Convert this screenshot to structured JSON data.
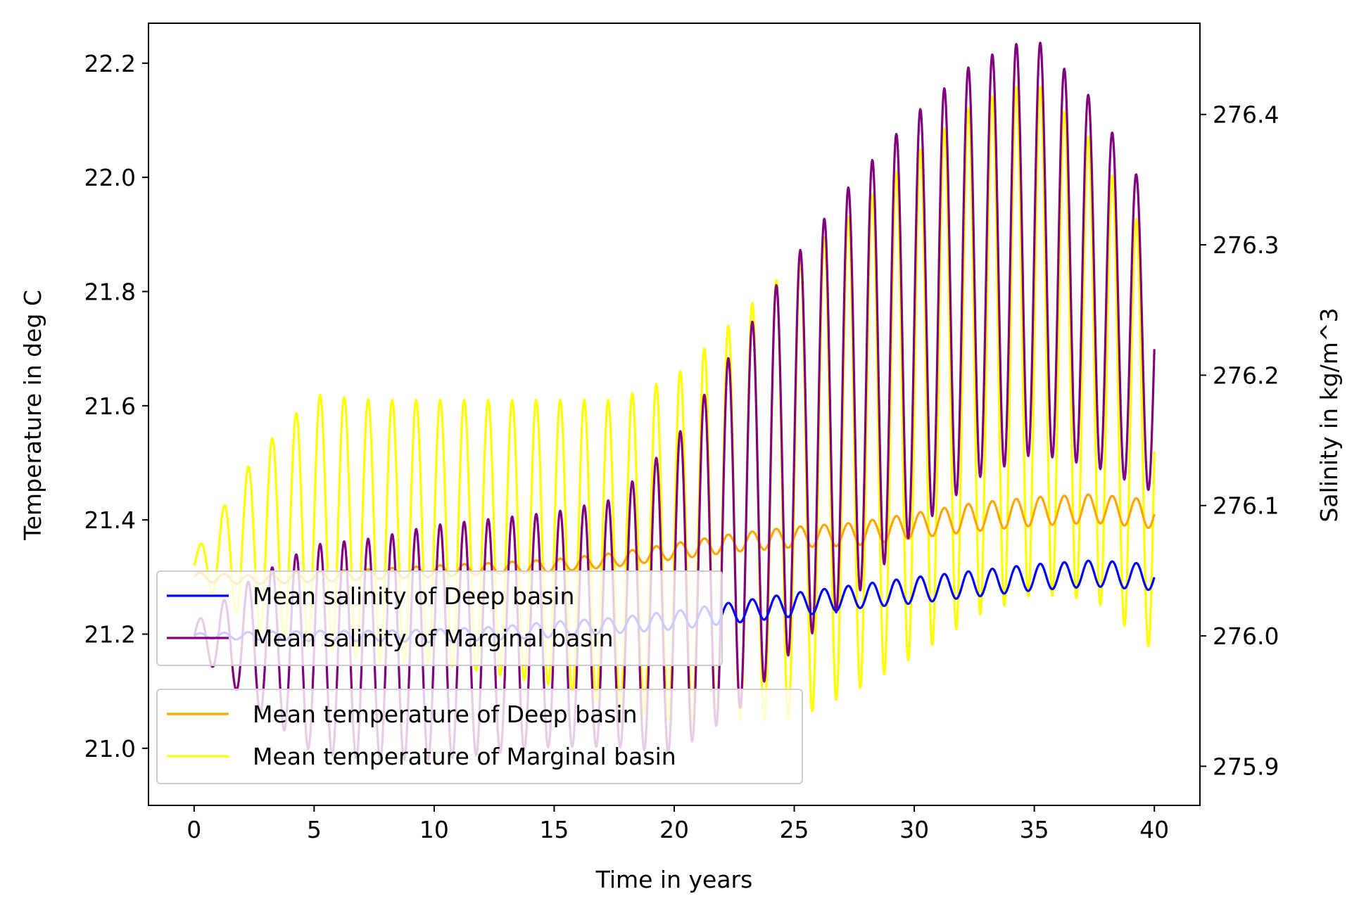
{
  "chart_data": {
    "type": "line",
    "title": "",
    "xlabel": "Time in years",
    "ylabel_left": "Temperature in deg C",
    "ylabel_right": "Salinity in kg/m^3",
    "xlim": [
      -1.9,
      41.9
    ],
    "ylim_left": [
      20.9,
      22.27
    ],
    "ylim_right": [
      275.87,
      276.47
    ],
    "x_ticks": [
      0,
      5,
      10,
      15,
      20,
      25,
      30,
      35,
      40
    ],
    "y_left_ticks": [
      21.0,
      21.2,
      21.4,
      21.6,
      21.8,
      22.0,
      22.2
    ],
    "y_right_ticks": [
      275.9,
      276.0,
      276.1,
      276.2,
      276.3,
      276.4
    ],
    "grid": false,
    "oscillation_period_years": 1,
    "x": [
      0,
      2.5,
      5,
      7.5,
      10,
      12.5,
      15,
      17.5,
      20,
      22.5,
      25,
      27.5,
      30,
      32.5,
      35,
      37.5,
      40
    ],
    "series": [
      {
        "name": "Mean temperature of Deep basin",
        "axis": "left",
        "color": "#ffa500",
        "center": [
          21.3,
          21.295,
          21.3,
          21.305,
          21.31,
          21.315,
          21.32,
          21.33,
          21.345,
          21.36,
          21.37,
          21.375,
          21.39,
          21.405,
          21.415,
          21.42,
          21.41
        ],
        "amplitude": [
          0.008,
          0.008,
          0.009,
          0.009,
          0.01,
          0.01,
          0.011,
          0.012,
          0.014,
          0.016,
          0.018,
          0.02,
          0.022,
          0.025,
          0.025,
          0.025,
          0.025
        ]
      },
      {
        "name": "Mean temperature of Marginal basin",
        "axis": "left",
        "color": "#ffff00",
        "center": [
          21.32,
          21.36,
          21.4,
          21.38,
          21.38,
          21.37,
          21.36,
          21.34,
          21.35,
          21.4,
          21.45,
          21.52,
          21.6,
          21.68,
          21.72,
          21.66,
          21.52
        ],
        "amplitude": [
          0.02,
          0.15,
          0.22,
          0.23,
          0.23,
          0.24,
          0.25,
          0.27,
          0.3,
          0.35,
          0.4,
          0.42,
          0.44,
          0.45,
          0.45,
          0.4,
          0.35
        ]
      },
      {
        "name": "Mean salinity of Deep basin",
        "axis": "right",
        "color": "#0000ff",
        "center": [
          276.0,
          276.0,
          276.0,
          276.0,
          276.0,
          276.002,
          276.005,
          276.008,
          276.012,
          276.018,
          276.024,
          276.03,
          276.035,
          276.04,
          276.045,
          276.048,
          276.045
        ],
        "amplitude": [
          0.002,
          0.003,
          0.004,
          0.004,
          0.005,
          0.005,
          0.006,
          0.006,
          0.007,
          0.008,
          0.009,
          0.009,
          0.01,
          0.01,
          0.01,
          0.01,
          0.01
        ]
      },
      {
        "name": "Mean salinity of Marginal basin",
        "axis": "right",
        "color": "#800080",
        "center": [
          276.0,
          275.995,
          275.99,
          275.99,
          275.995,
          276.0,
          276.005,
          276.01,
          276.03,
          276.08,
          276.14,
          276.19,
          276.24,
          276.28,
          276.3,
          276.27,
          276.22
        ],
        "amplitude": [
          0.01,
          0.05,
          0.08,
          0.085,
          0.09,
          0.09,
          0.09,
          0.095,
          0.12,
          0.14,
          0.15,
          0.16,
          0.16,
          0.16,
          0.16,
          0.14,
          0.11
        ]
      }
    ],
    "legends": [
      {
        "placement": "lower-left, upper box",
        "entries": [
          "Mean salinity of Deep basin",
          "Mean salinity of Marginal basin"
        ]
      },
      {
        "placement": "lower-left, lower box",
        "entries": [
          "Mean temperature of Deep basin",
          "Mean temperature of Marginal basin"
        ]
      }
    ]
  }
}
